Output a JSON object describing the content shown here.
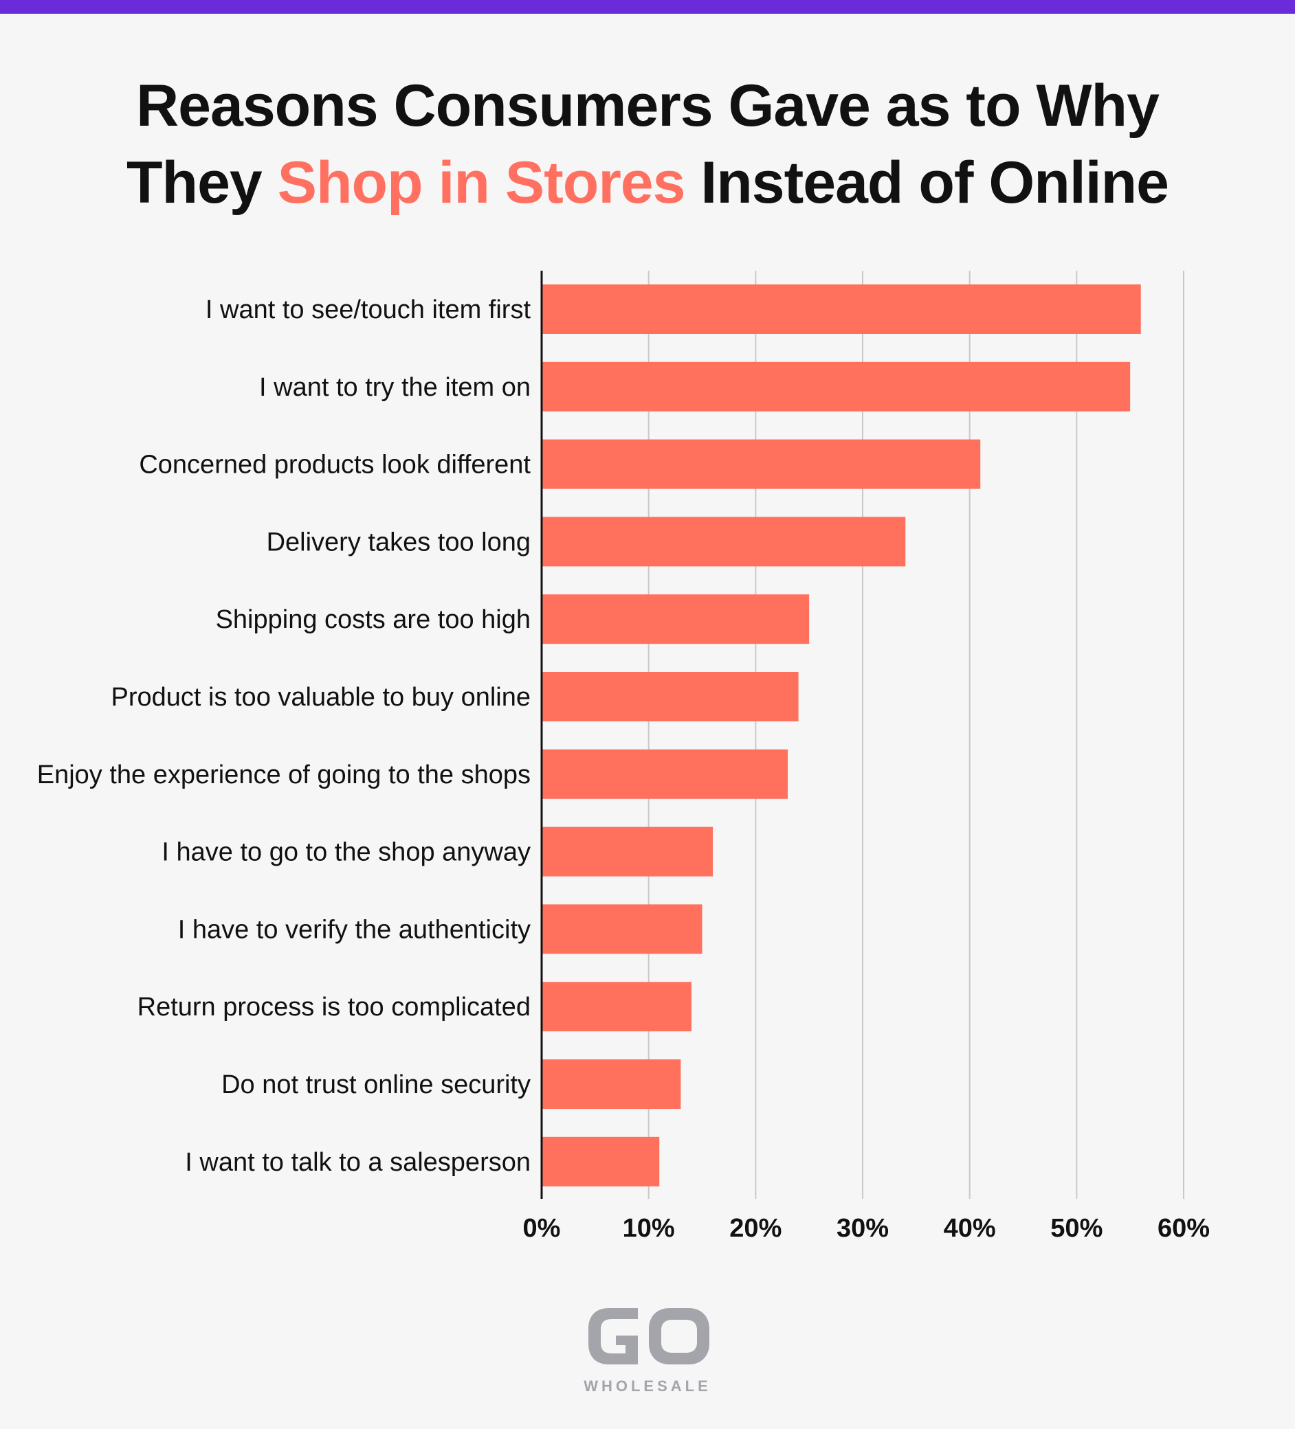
{
  "header": {
    "title_line1": "Reasons Consumers Gave as to Why",
    "title_line2_before": "They ",
    "title_line2_accent": "Shop in Stores",
    "title_line2_after": " Instead of Online"
  },
  "colors": {
    "stripe": "#6a2bd9",
    "bar": "#ff705d",
    "accent_text": "#ff7060",
    "grid": "#c9c9c9",
    "axis": "#111111",
    "logo": "#a3a5ab"
  },
  "chart_data": {
    "type": "bar",
    "orientation": "horizontal",
    "categories": [
      "I want to see/touch item first",
      "I want to try the item on",
      "Concerned products look different",
      "Delivery takes too long",
      "Shipping costs are too high",
      "Product is too valuable to buy online",
      "Enjoy the experience of going to the shops",
      "I have to go to the shop anyway",
      "I have to verify the authenticity",
      "Return process is too complicated",
      "Do not trust online security",
      "I want to talk to a salesperson"
    ],
    "values": [
      56,
      55,
      41,
      34,
      25,
      24,
      23,
      16,
      15,
      14,
      13,
      11
    ],
    "xlim": [
      0,
      60
    ],
    "x_ticks": [
      0,
      10,
      20,
      30,
      40,
      50,
      60
    ],
    "x_tick_labels": [
      "0%",
      "10%",
      "20%",
      "30%",
      "40%",
      "50%",
      "60%"
    ],
    "grid": true,
    "legend": "none"
  },
  "logo": {
    "mark": "GO",
    "word": "WHOLESALE"
  }
}
